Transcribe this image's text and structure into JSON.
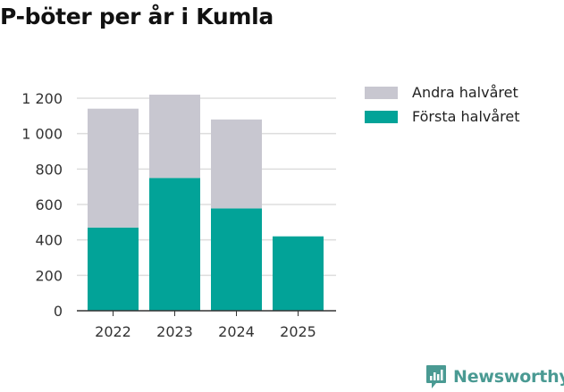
{
  "title": "P-böter per år i Kumla",
  "brand": {
    "name": "Newsworthy",
    "icon": "newsworthy-chart-logo-icon"
  },
  "colors": {
    "forsta": "#02a398",
    "andra": "#c8c7d0",
    "axis": "#333333",
    "grid": "#dddddd",
    "brand": "#4a9a93"
  },
  "legend": {
    "placement": "right-top",
    "items": [
      {
        "label": "Andra halvåret",
        "color": "#c8c7d0"
      },
      {
        "label": "Första halvåret",
        "color": "#02a398"
      }
    ]
  },
  "chart_data": {
    "type": "bar",
    "stacked": true,
    "categories": [
      "2022",
      "2023",
      "2024",
      "2025"
    ],
    "series": [
      {
        "name": "Första halvåret",
        "values": [
          470,
          750,
          578,
          420
        ]
      },
      {
        "name": "Andra halvåret",
        "values": [
          671,
          470,
          502,
          0
        ]
      }
    ],
    "ylim": [
      0,
      1200
    ],
    "yticks": [
      0,
      200,
      400,
      600,
      800,
      1000,
      1200
    ],
    "ytick_labels": [
      "0",
      "200",
      "400",
      "600",
      "800",
      "1 000",
      "1 200"
    ],
    "grid": true,
    "xlabel": "",
    "ylabel": ""
  }
}
